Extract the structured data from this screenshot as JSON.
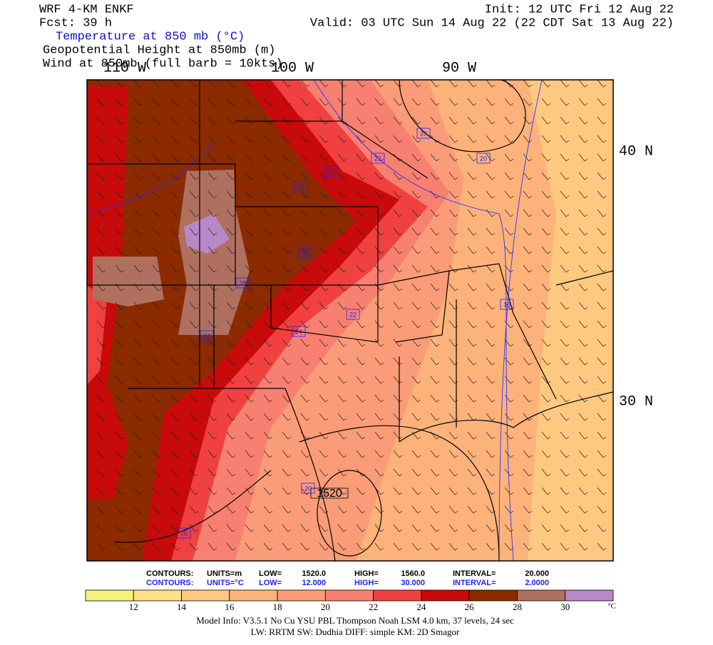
{
  "header": {
    "left": [
      "WRF 4-KM ENKF",
      "Fcst:   39 h"
    ],
    "right": [
      "Init: 12 UTC Fri 12 Aug 22",
      "Valid: 03 UTC Sun 14 Aug 22 (22 CDT Sat 13 Aug 22)"
    ]
  },
  "fields": [
    "Temperature at 850 mb (°C)",
    "Geopotential Height at 850mb (m)",
    "Wind at 850mb (full barb = 10kts)"
  ],
  "longitudes": [
    "110 W",
    "100 W",
    "90 W"
  ],
  "latitudes": [
    "40 N",
    "30 N"
  ],
  "contour_labels": [
    "20",
    "22",
    "20",
    "24",
    "26",
    "26",
    "28",
    "24",
    "22",
    "18",
    "24",
    "20",
    "26",
    "1520"
  ],
  "contours": [
    {
      "label": "CONTOURS:",
      "units": "UNITS=m",
      "low": "LOW=",
      "low_value": "1520.0",
      "high": "HIGH=",
      "high_value": "1560.0",
      "interval": "INTERVAL=",
      "interval_value": "20.000"
    },
    {
      "label": "CONTOURS:",
      "units": "UNITS=°C",
      "low": "LOW=",
      "low_value": "12.000",
      "high": "HIGH=",
      "high_value": "30.000",
      "interval": "INTERVAL=",
      "interval_value": "2.0000"
    }
  ],
  "colorbar": {
    "colors": [
      "#f4f47c",
      "#fde08a",
      "#fdc880",
      "#fdb27a",
      "#fb9c78",
      "#f88070",
      "#f04040",
      "#c80a0a",
      "#8c2a00",
      "#b07060",
      "#b888c8"
    ],
    "ticks": [
      12,
      14,
      16,
      18,
      20,
      22,
      24,
      26,
      28,
      30
    ],
    "unit": "°C"
  },
  "footer": [
    "Model Info: V3.5.1   No Cu   YSU PBL  Thompson    Noah LSM  4.0 km,  37 levels,   24 sec",
    "LW: RRTM  SW: Dudhia  DIFF: simple  KM: 2D Smagor"
  ]
}
